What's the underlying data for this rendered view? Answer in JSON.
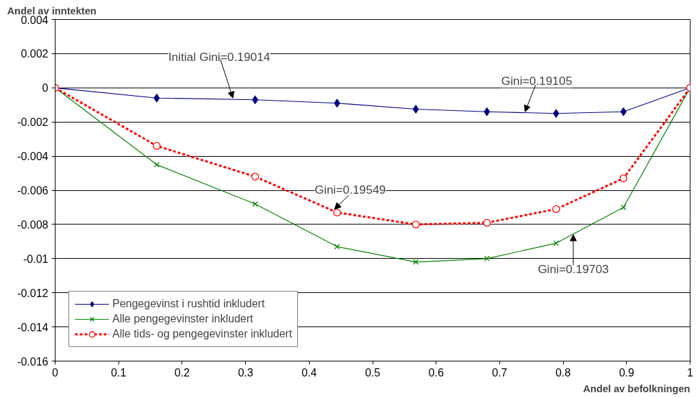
{
  "chart_data": {
    "type": "line",
    "xlabel": "Andel av befolkningen",
    "ylabel": "Andel av inntekten",
    "xlim": [
      0,
      1
    ],
    "xticks": [
      0,
      0.1,
      0.2,
      0.3,
      0.4,
      0.5,
      0.6,
      0.7,
      0.8,
      0.9,
      1
    ],
    "ylim": [
      -0.016,
      0.004
    ],
    "yticks": [
      -0.016,
      -0.014,
      -0.012,
      -0.01,
      -0.008,
      -0.006,
      -0.004,
      -0.002,
      0,
      0.002,
      0.004
    ],
    "grid": "y",
    "legend": "bottom left",
    "series": [
      {
        "name": "Pengegevinst i rushtid inkludert",
        "color": "#000080",
        "marker": "diamond",
        "line_style": "solid",
        "x": [
          0,
          0.16,
          0.315,
          0.444,
          0.568,
          0.68,
          0.789,
          0.895,
          1
        ],
        "values": [
          0,
          -0.0006,
          -0.0007,
          -0.0009,
          -0.00125,
          -0.0014,
          -0.0015,
          -0.0014,
          0
        ]
      },
      {
        "name": "Alle pengegevinster inkludert",
        "color": "#008000",
        "marker": "cross",
        "line_style": "solid",
        "x": [
          0,
          0.16,
          0.315,
          0.444,
          0.568,
          0.68,
          0.789,
          0.895,
          1
        ],
        "values": [
          0,
          -0.0045,
          -0.0068,
          -0.0093,
          -0.0102,
          -0.01,
          -0.0091,
          -0.007,
          0
        ]
      },
      {
        "name": "Alle tids- og pengegevinster inkludert",
        "color": "#ff0000",
        "marker": "circle",
        "line_style": "dashed",
        "x": [
          0,
          0.16,
          0.315,
          0.444,
          0.568,
          0.68,
          0.789,
          0.895,
          1
        ],
        "values": [
          0,
          -0.0034,
          -0.0052,
          -0.0073,
          -0.008,
          -0.0079,
          -0.0071,
          -0.0053,
          0
        ]
      }
    ],
    "annotations": [
      {
        "text": "Initial Gini=0.19014",
        "x": 0.28,
        "y": -0.0006
      },
      {
        "text": "Gini=0.19105",
        "x": 0.74,
        "y": -0.0014
      },
      {
        "text": "Gini=0.19549",
        "x": 0.44,
        "y": -0.0071
      },
      {
        "text": "Gini=0.19703",
        "x": 0.816,
        "y": -0.0086
      }
    ]
  }
}
